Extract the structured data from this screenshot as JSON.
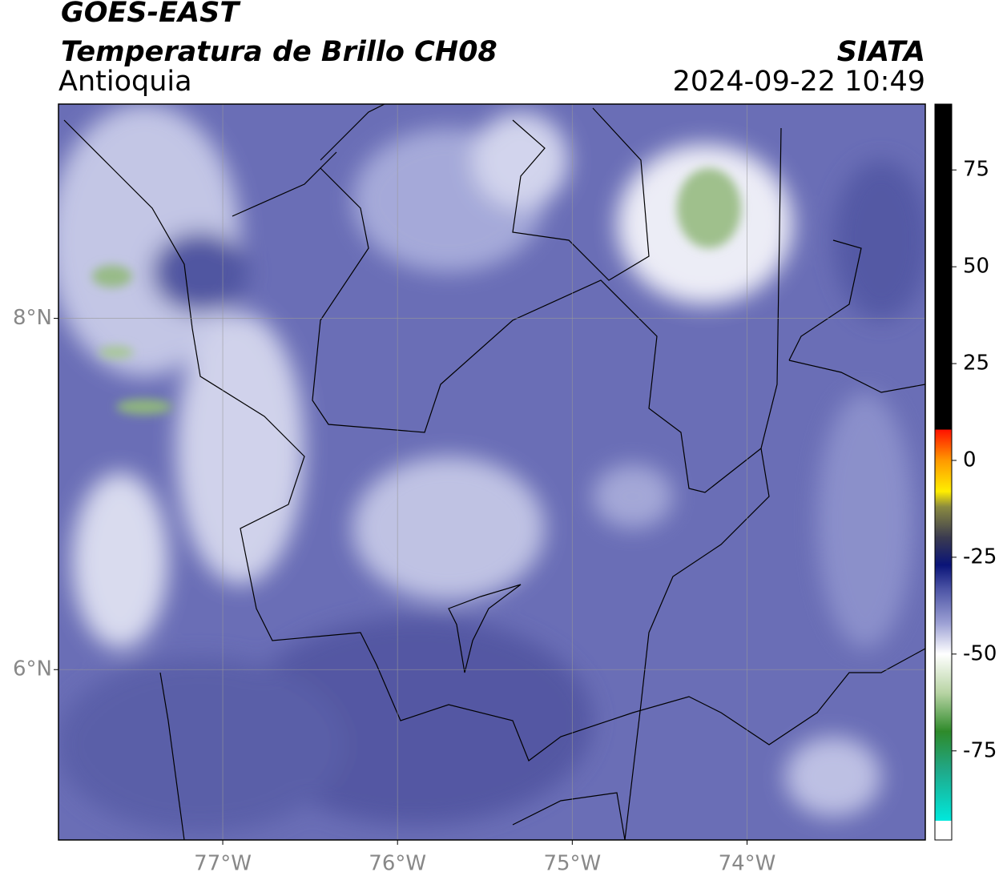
{
  "header": {
    "title": "GOES-EAST",
    "subtitle": "Temperatura de Brillo CH08",
    "region": "Antioquia",
    "agency": "SIATA",
    "datetime": "2024-09-22 10:49"
  },
  "map": {
    "lonlim": [
      -77.94,
      -72.98
    ],
    "latlim": [
      5.03,
      9.22
    ],
    "lonticks": [
      {
        "value": -77,
        "label": "77°W"
      },
      {
        "value": -76,
        "label": "76°W"
      },
      {
        "value": -75,
        "label": "75°W"
      },
      {
        "value": -74,
        "label": "74°W"
      }
    ],
    "latticks": [
      {
        "value": 6,
        "label": "6°N"
      },
      {
        "value": 8,
        "label": "8°N"
      }
    ],
    "grid": true
  },
  "colorbar": {
    "lim": [
      -98,
      92
    ],
    "ticks": [
      -75,
      -50,
      -25,
      0,
      25,
      50,
      75
    ],
    "stops": [
      {
        "value": -98,
        "color": "#ffffff"
      },
      {
        "value": -93,
        "color": "#ffffff"
      },
      {
        "value": -93,
        "color": "#00e8dc"
      },
      {
        "value": -80,
        "color": "#20a888"
      },
      {
        "value": -70,
        "color": "#2e8a2a"
      },
      {
        "value": -60,
        "color": "#b8d4a4"
      },
      {
        "value": -50,
        "color": "#ffffff"
      },
      {
        "value": -42,
        "color": "#9ca0d4"
      },
      {
        "value": -33,
        "color": "#4a52a4"
      },
      {
        "value": -27,
        "color": "#0a1478"
      },
      {
        "value": -20,
        "color": "#3a3a50"
      },
      {
        "value": -12,
        "color": "#8a8a40"
      },
      {
        "value": -8,
        "color": "#ffee00"
      },
      {
        "value": 0,
        "color": "#ff9900"
      },
      {
        "value": 8,
        "color": "#ff1000"
      },
      {
        "value": 8,
        "color": "#000000"
      },
      {
        "value": 92,
        "color": "#000000"
      }
    ]
  }
}
